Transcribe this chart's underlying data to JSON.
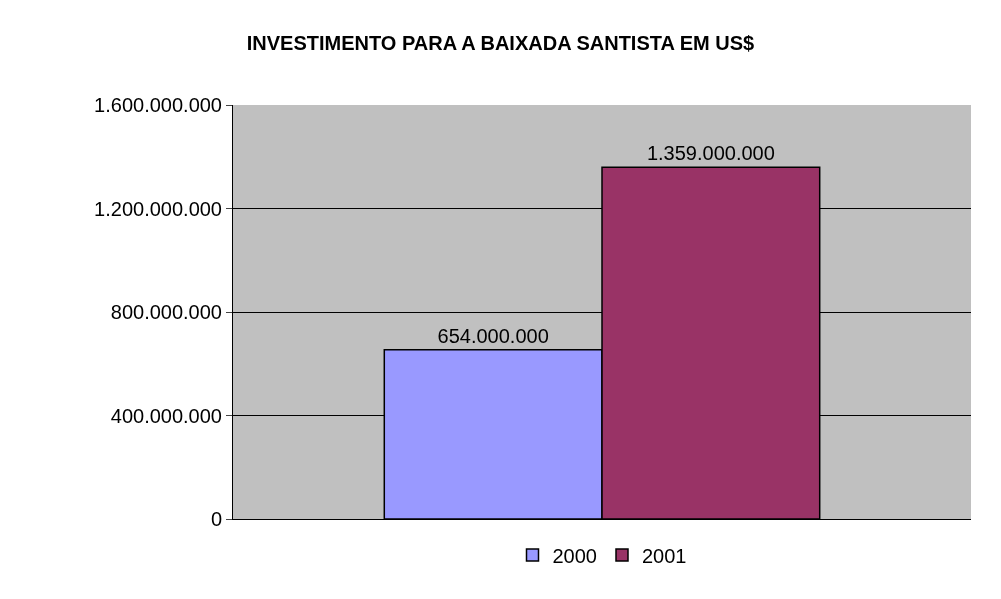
{
  "chart_data": {
    "type": "bar",
    "title": "INVESTIMENTO PARA A BAIXADA SANTISTA EM US$",
    "categories": [
      null
    ],
    "series": [
      {
        "name": "2000",
        "color": "#9999ff",
        "values": [
          654000000
        ],
        "value_labels": [
          "654.000.000"
        ]
      },
      {
        "name": "2001",
        "color": "#993366",
        "values": [
          1359000000
        ],
        "value_labels": [
          "1.359.000.000"
        ]
      }
    ],
    "ylim": [
      0,
      1600000000
    ],
    "yticks": [
      {
        "value": 0,
        "label": "0"
      },
      {
        "value": 400000000,
        "label": "400.000.000"
      },
      {
        "value": 800000000,
        "label": "800.000.000"
      },
      {
        "value": 1200000000,
        "label": "1.200.000.000"
      },
      {
        "value": 1600000000,
        "label": "1.600.000.000"
      }
    ],
    "grid": "y",
    "legend": "bottom"
  }
}
